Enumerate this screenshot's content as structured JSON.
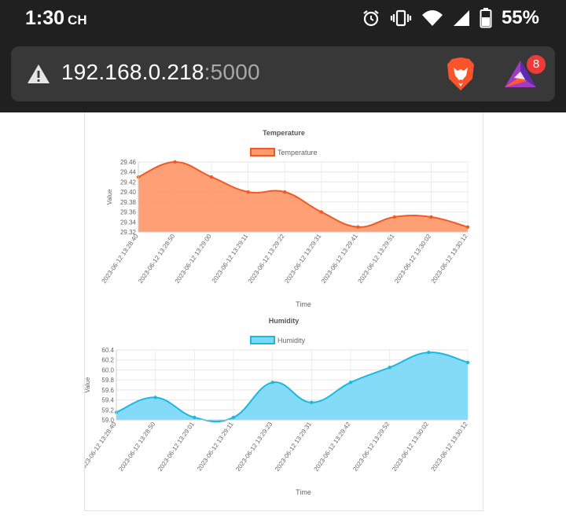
{
  "status_bar": {
    "time": "1:30",
    "time_suffix": "CH",
    "battery": "55%",
    "icons": [
      "alarm-icon",
      "vibrate-icon",
      "wifi-icon",
      "signal-icon",
      "battery-icon"
    ]
  },
  "browser": {
    "url_host": "192.168.0.218",
    "url_port": ":5000",
    "rewards_badge": "8",
    "icons": [
      "warning-icon",
      "brave-lion-icon",
      "brave-rewards-icon"
    ]
  },
  "colors": {
    "temp_line": "#f15a22",
    "temp_fill": "#ff9a6f",
    "hum_line": "#1cb8e0",
    "hum_fill": "#7dd9f8"
  },
  "chart_data": [
    {
      "type": "area",
      "title": "Temperature",
      "legend": "Temperature",
      "xlabel": "Time",
      "ylabel": "Value",
      "categories": [
        "2023-06-12 13:28:40",
        "2023-06-12 13:28:50",
        "2023-06-12 13:29:00",
        "2023-06-12 13:29:11",
        "2023-06-12 13:29:22",
        "2023-06-12 13:29:31",
        "2023-06-12 13:29:41",
        "2023-06-12 13:29:51",
        "2023-06-12 13:30:02",
        "2023-06-12 13:30:12"
      ],
      "values": [
        29.43,
        29.46,
        29.43,
        29.4,
        29.4,
        29.36,
        29.33,
        29.35,
        29.35,
        29.33
      ],
      "ylim": [
        29.32,
        29.46
      ],
      "yticks": [
        "29.46",
        "29.44",
        "29.42",
        "29.40",
        "29.38",
        "29.36",
        "29.34",
        "29.32"
      ]
    },
    {
      "type": "area",
      "title": "Humidity",
      "legend": "Humidity",
      "xlabel": "Time",
      "ylabel": "Value",
      "categories": [
        "2023-06-12 13:28:40",
        "2023-06-12 13:28:50",
        "2023-06-12 13:29:01",
        "2023-06-12 13:29:11",
        "2023-06-12 13:29:23",
        "2023-06-12 13:29:31",
        "2023-06-12 13:29:42",
        "2023-06-12 13:29:52",
        "2023-06-12 13:30:02",
        "2023-06-12 13:30:12"
      ],
      "values": [
        59.15,
        59.45,
        59.05,
        59.05,
        59.75,
        59.35,
        59.75,
        60.05,
        60.35,
        60.15
      ],
      "ylim": [
        59.0,
        60.4
      ],
      "yticks": [
        "60.4",
        "60.2",
        "60.0",
        "59.8",
        "59.6",
        "59.4",
        "59.2",
        "59.0"
      ]
    }
  ]
}
